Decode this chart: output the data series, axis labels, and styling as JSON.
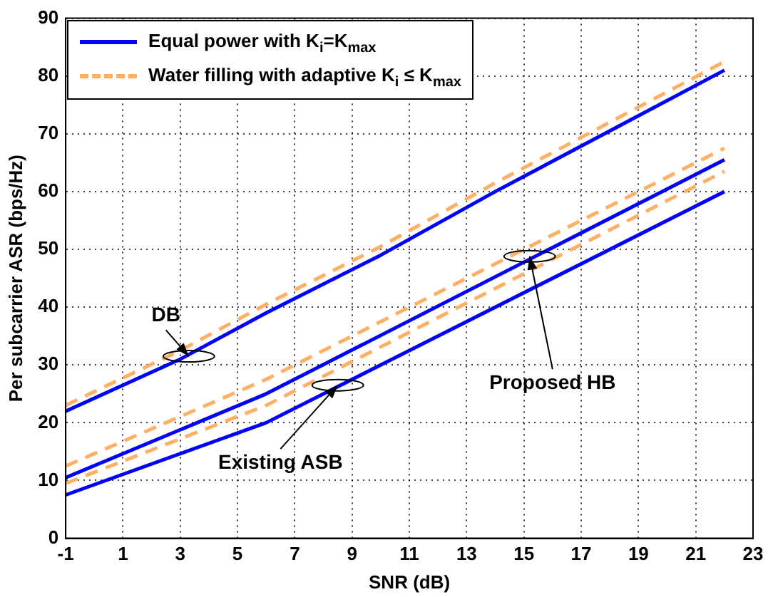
{
  "chart_data": {
    "type": "line",
    "xlabel": "SNR (dB)",
    "ylabel": "Per subcarrier ASR (bps/Hz)",
    "xlim": [
      -1,
      23
    ],
    "xticks": [
      -1,
      1,
      3,
      5,
      7,
      9,
      11,
      13,
      15,
      17,
      19,
      21,
      23
    ],
    "ylim": [
      0,
      90
    ],
    "yticks": [
      0,
      10,
      20,
      30,
      40,
      50,
      60,
      70,
      80,
      90
    ],
    "grid": true,
    "legend": "top left",
    "marker": "none",
    "series": [
      {
        "name": "Equal power with K$_{i}$=K$_{max}$",
        "color": "#0000ff",
        "line_style": "solid",
        "x": [
          -1,
          3,
          6,
          10,
          14,
          18,
          22
        ],
        "values": [
          22,
          31,
          39,
          49,
          60,
          70.5,
          81
        ]
      },
      {
        "name": "Water filling with adaptive K$_{i}$ ≤ K$_{max}$",
        "color": "#ffb066",
        "line_style": "dashed",
        "x": [
          -1,
          3,
          6,
          10,
          14,
          18,
          22
        ],
        "values": [
          23,
          32.5,
          40.5,
          50.5,
          61.5,
          72,
          82.5
        ]
      },
      {
        "color": "#0000ff",
        "line_style": "solid",
        "x": [
          -1,
          6,
          22
        ],
        "values": [
          10.5,
          25,
          65.5
        ]
      },
      {
        "color": "#ffb066",
        "line_style": "dashed",
        "x": [
          -1,
          6,
          22
        ],
        "values": [
          12.5,
          27.5,
          67.5
        ]
      },
      {
        "color": "#ffb066",
        "line_style": "dashed",
        "x": [
          -1,
          6,
          22
        ],
        "values": [
          9.5,
          23,
          63.5
        ]
      },
      {
        "color": "#0000ff",
        "line_style": "solid",
        "x": [
          -1,
          6,
          22
        ],
        "values": [
          7.5,
          20,
          60
        ]
      }
    ],
    "annotations": [
      {
        "text": "DB",
        "x": 3.3,
        "y": 31.5
      },
      {
        "text": "Existing ASB",
        "x": 8.5,
        "y": 26.5
      },
      {
        "text": "Proposed HB",
        "x": 15.2,
        "y": 48.8
      }
    ]
  }
}
